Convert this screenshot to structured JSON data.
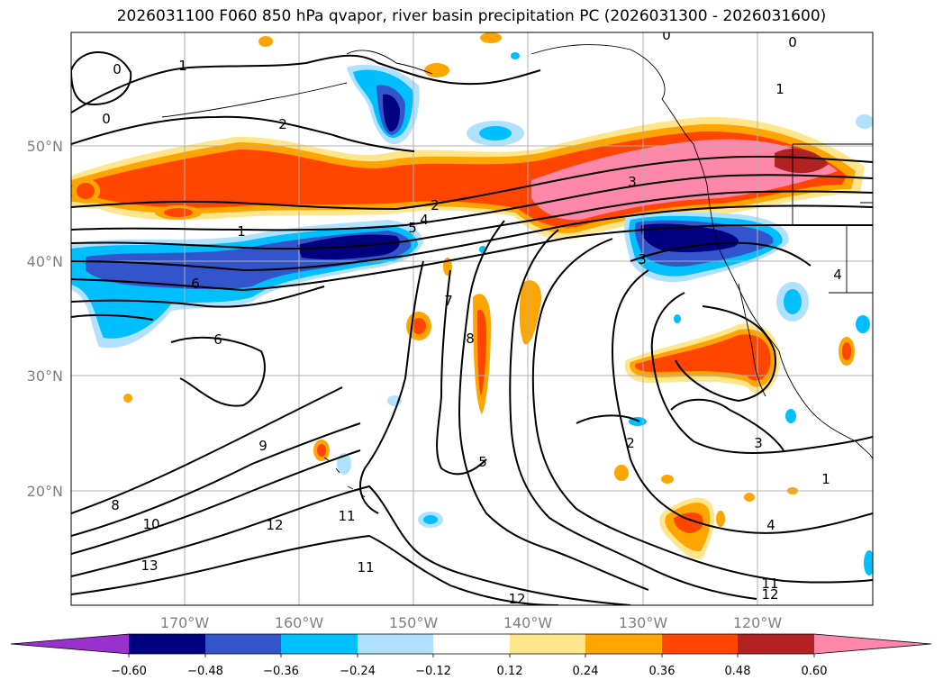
{
  "title": "2026031100 F060 850 hPa qvapor, river basin precipitation PC (2026031300 - 2026031600)",
  "map": {
    "latitude_labels": [
      "50°N",
      "40°N",
      "30°N",
      "20°N"
    ],
    "longitude_labels": [
      "170°W",
      "160°W",
      "150°W",
      "140°W",
      "130°W",
      "120°W"
    ],
    "gridline_color": "#b0b0b0",
    "label_color": "#808080"
  },
  "contour_labels": [
    "0",
    "0",
    "0",
    "0",
    "1",
    "1",
    "1",
    "1",
    "2",
    "2",
    "2",
    "3",
    "3",
    "3",
    "4",
    "4",
    "4",
    "5",
    "5",
    "6",
    "6",
    "7",
    "8",
    "8",
    "9",
    "10",
    "11",
    "11",
    "11",
    "12",
    "12",
    "12",
    "13"
  ],
  "colorbar": {
    "ticks": [
      "−0.60",
      "−0.48",
      "−0.36",
      "−0.24",
      "−0.12",
      "0.12",
      "0.24",
      "0.36",
      "0.48",
      "0.60"
    ],
    "colors": [
      "#9932cc",
      "#000080",
      "#3355cc",
      "#00bfff",
      "#b0e2ff",
      "#ffffff",
      "#ffe68c",
      "#ffa500",
      "#ff4500",
      "#b22222",
      "#ff88aa"
    ]
  },
  "shading_colors": {
    "neg_strong": "#000080",
    "neg_mid": "#3355cc",
    "neg_light": "#00bfff",
    "neg_pale": "#b0e2ff",
    "pos_pale": "#ffe68c",
    "pos_light": "#ffa500",
    "pos_mid": "#ff4500",
    "pos_strong": "#b22222",
    "pos_max": "#ff88aa"
  }
}
